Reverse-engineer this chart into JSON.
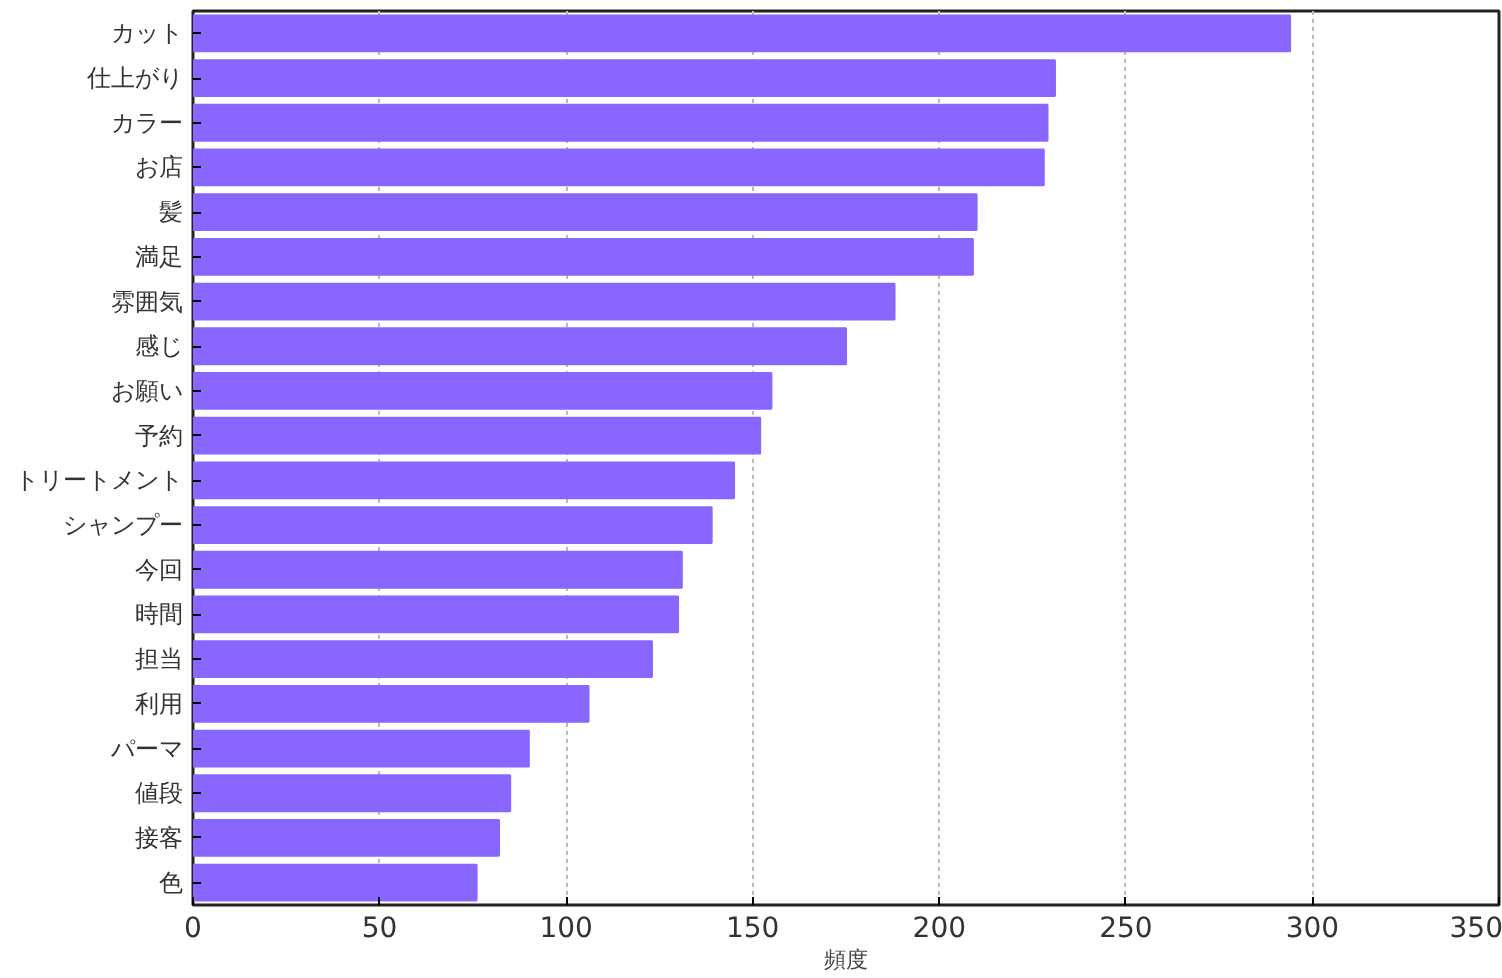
{
  "chart_data": {
    "type": "bar",
    "orientation": "horizontal",
    "xlabel": "頻度",
    "categories": [
      "カット",
      "仕上がり",
      "カラー",
      "お店",
      "髪",
      "満足",
      "雰囲気",
      "感じ",
      "お願い",
      "予約",
      "トリートメント",
      "シャンプー",
      "今回",
      "時間",
      "担当",
      "利用",
      "パーマ",
      "値段",
      "接客",
      "色"
    ],
    "values": [
      294,
      231,
      229,
      228,
      210,
      209,
      188,
      175,
      155,
      152,
      145,
      139,
      131,
      130,
      123,
      106,
      90,
      85,
      82,
      76
    ],
    "color": "#8866ff",
    "xlim": [
      0,
      350
    ],
    "xticks": [
      0,
      50,
      100,
      150,
      200,
      250,
      300,
      350
    ],
    "grid": "x"
  }
}
